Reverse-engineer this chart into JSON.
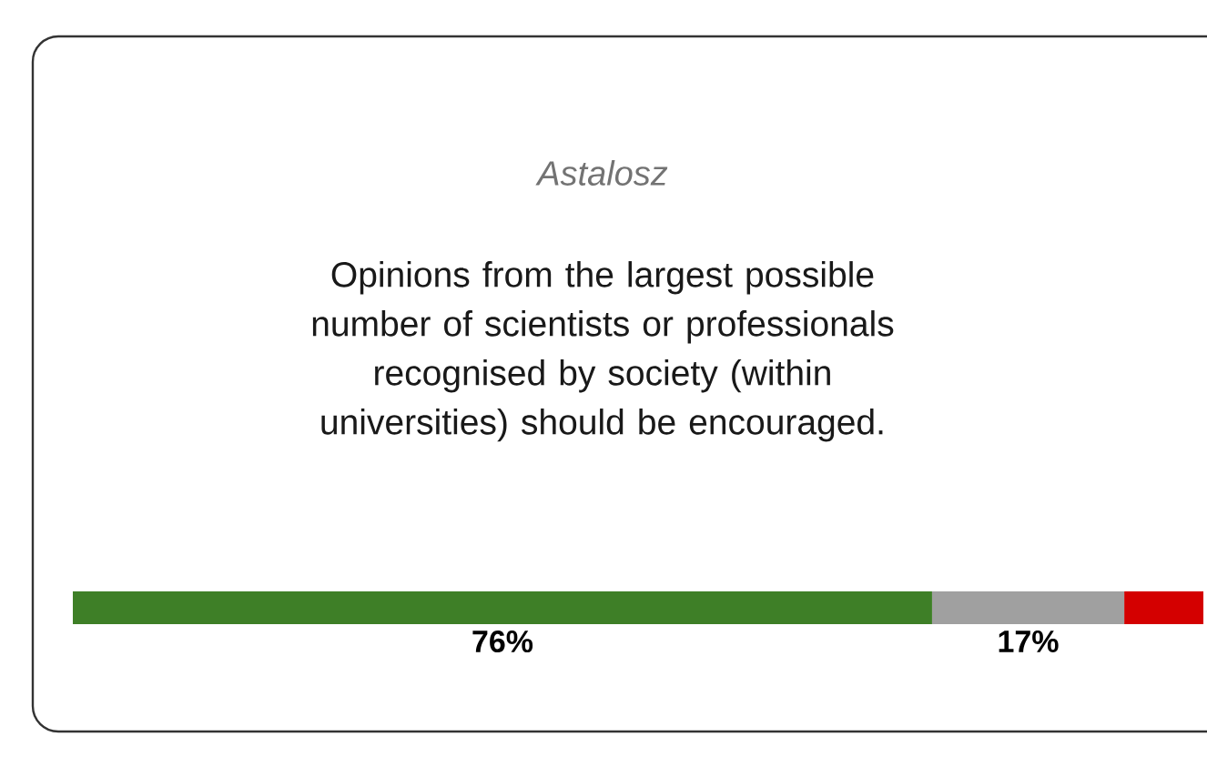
{
  "chart_data": {
    "type": "bar",
    "orientation": "horizontal",
    "stacked": true,
    "title": "Astalosz",
    "subtitle": "Opinions from the largest possible number of scientists or professionals recognised by society (within universities) should be encouraged.",
    "categories": [
      null
    ],
    "xlim": [
      0,
      100
    ],
    "series": [
      {
        "color": "#3e7f27",
        "values": [
          76
        ],
        "value_labels": [
          "76%"
        ]
      },
      {
        "color": "#a0a0a0",
        "values": [
          17
        ],
        "value_labels": [
          "17%"
        ]
      },
      {
        "color": "#d40000",
        "values": [
          7
        ],
        "value_labels": [
          null
        ]
      }
    ]
  }
}
